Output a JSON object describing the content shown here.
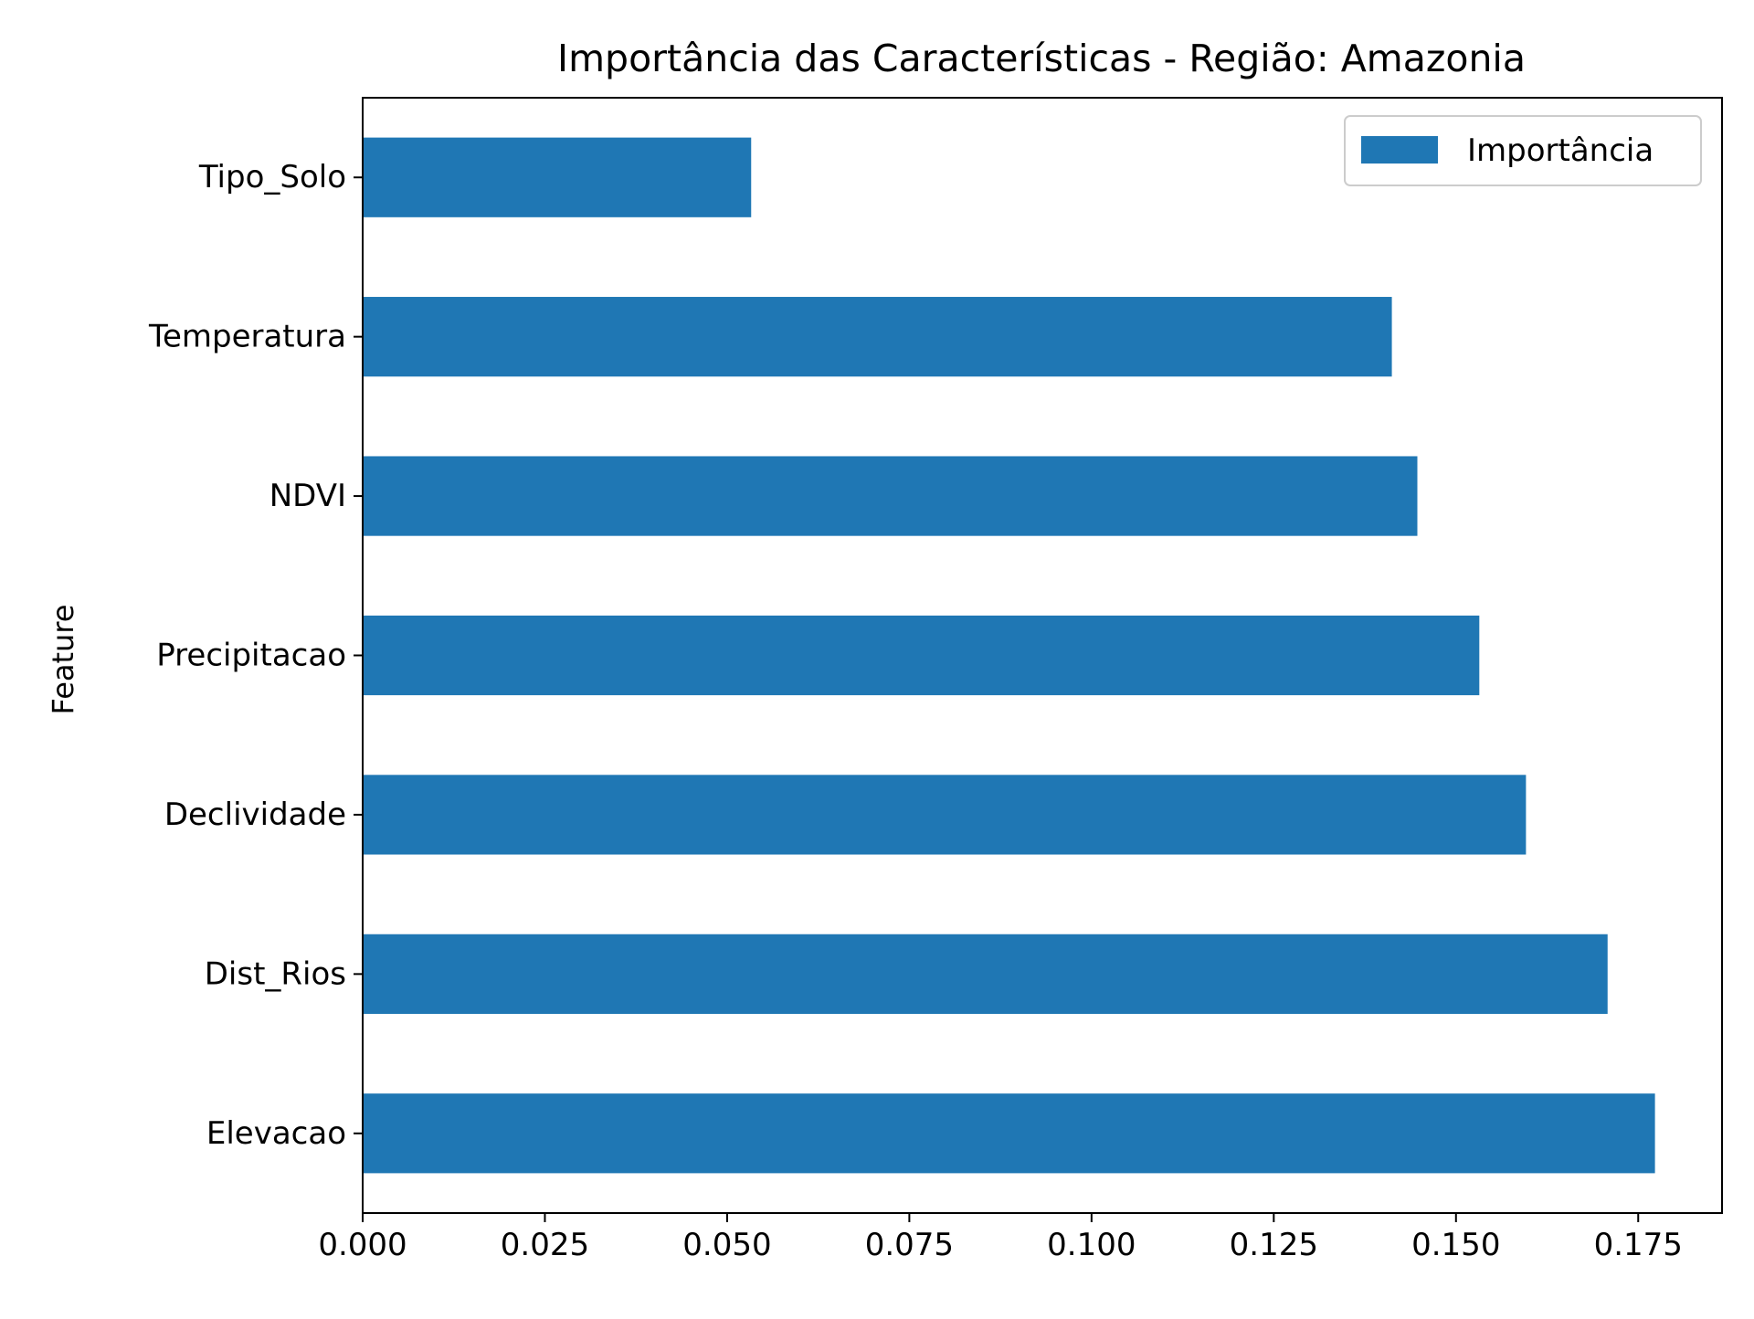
{
  "chart_data": {
    "type": "bar",
    "orientation": "horizontal",
    "title": "Importância das Características - Região: Amazonia",
    "xlabel": "",
    "ylabel": "Feature",
    "categories": [
      "Elevacao",
      "Dist_Rios",
      "Declividade",
      "Precipitacao",
      "NDVI",
      "Temperatura",
      "Tipo_Solo"
    ],
    "series": [
      {
        "name": "Importância",
        "color": "#1f77b4",
        "values": [
          0.1773,
          0.1708,
          0.1596,
          0.1532,
          0.1447,
          0.1412,
          0.0533
        ]
      }
    ],
    "xlim": [
      0,
      0.1865
    ],
    "xticks": [
      0.0,
      0.025,
      0.05,
      0.075,
      0.1,
      0.125,
      0.15,
      0.175
    ],
    "xtick_labels": [
      "0.000",
      "0.025",
      "0.050",
      "0.075",
      "0.100",
      "0.125",
      "0.150",
      "0.175"
    ],
    "grid": false,
    "legend": {
      "position": "top-right",
      "entries": [
        "Importância"
      ]
    }
  }
}
